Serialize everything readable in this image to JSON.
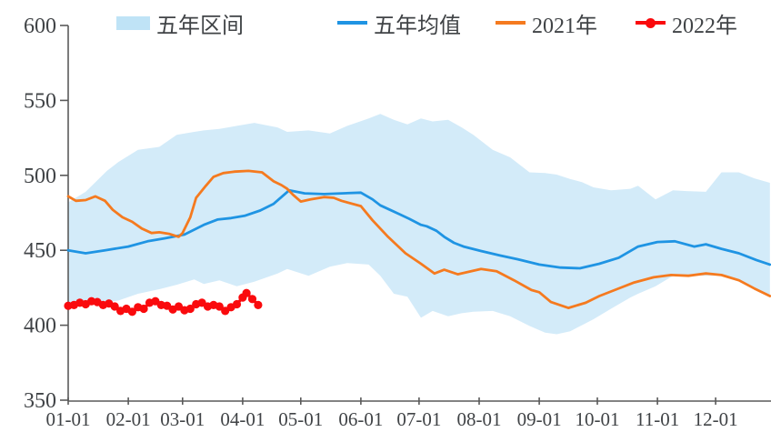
{
  "chart_data": {
    "type": "line",
    "title": "",
    "legend_position": "top",
    "grid": false,
    "axis_color": "#5A5A5A",
    "text_color": "#404346",
    "legend": [
      {
        "label": "五年区间",
        "type": "band",
        "color": "#BFE3F6"
      },
      {
        "label": "五年均值",
        "type": "line",
        "color": "#1F94E3"
      },
      {
        "label": "2021年",
        "type": "line",
        "color": "#F57A1F"
      },
      {
        "label": "2022年",
        "type": "line-marker",
        "color": "#FA0A0D"
      }
    ],
    "y_axis": {
      "min": 350,
      "max": 600,
      "tick_values": [
        350,
        400,
        450,
        500,
        550,
        600
      ]
    },
    "x_axis": {
      "tick_labels": [
        "01-01",
        "02-01",
        "03-01",
        "04-01",
        "05-01",
        "06-01",
        "07-01",
        "08-01",
        "09-01",
        "10-01",
        "11-01",
        "12-01"
      ]
    },
    "band": {
      "name": "五年区间",
      "color": "#D3EBF9",
      "comment": "points are [date, low, high]",
      "points": [
        [
          "01-01",
          413,
          482
        ],
        [
          "01-10",
          413.5,
          489
        ],
        [
          "01-21",
          415.5,
          503
        ],
        [
          "01-27",
          416.5,
          509
        ],
        [
          "02-06",
          421,
          517
        ],
        [
          "02-17",
          424,
          519
        ],
        [
          "02-26",
          427,
          527
        ],
        [
          "03-07",
          430.5,
          529
        ],
        [
          "03-12",
          427.5,
          530
        ],
        [
          "03-20",
          430,
          531
        ],
        [
          "03-29",
          426,
          533
        ],
        [
          "04-07",
          429,
          535
        ],
        [
          "04-19",
          434.5,
          532
        ],
        [
          "04-24",
          437.5,
          529
        ],
        [
          "05-05",
          433,
          530
        ],
        [
          "05-16",
          439,
          528
        ],
        [
          "05-25",
          441.5,
          533
        ],
        [
          "06-05",
          440.5,
          538
        ],
        [
          "06-11",
          433,
          541
        ],
        [
          "06-18",
          421,
          537
        ],
        [
          "06-25",
          419,
          534
        ],
        [
          "07-02",
          405,
          538
        ],
        [
          "07-08",
          409.5,
          536
        ],
        [
          "07-16",
          406,
          537
        ],
        [
          "07-23",
          408,
          532
        ],
        [
          "07-29",
          409,
          527
        ],
        [
          "08-08",
          409.5,
          517
        ],
        [
          "08-17",
          406,
          512
        ],
        [
          "08-27",
          399.5,
          502
        ],
        [
          "09-04",
          395,
          501.5
        ],
        [
          "09-10",
          394,
          500.5
        ],
        [
          "09-17",
          396,
          497.5
        ],
        [
          "09-23",
          400,
          495.5
        ],
        [
          "09-29",
          404,
          492
        ],
        [
          "10-08",
          411,
          490
        ],
        [
          "10-18",
          418.5,
          491
        ],
        [
          "10-22",
          421,
          493
        ],
        [
          "10-31",
          426,
          484
        ],
        [
          "11-09",
          433,
          490
        ],
        [
          "11-16",
          433.5,
          489.5
        ],
        [
          "11-26",
          433,
          489
        ],
        [
          "12-04",
          433.5,
          502
        ],
        [
          "12-13",
          430.5,
          502
        ],
        [
          "12-21",
          424,
          498
        ],
        [
          "12-29",
          420,
          495
        ]
      ]
    },
    "series": [
      {
        "id": "mean",
        "name": "五年均值",
        "color": "#1F94E3",
        "width": 2.8,
        "marker": false,
        "points": [
          [
            "01-01",
            450
          ],
          [
            "01-10",
            448
          ],
          [
            "01-20",
            450
          ],
          [
            "02-01",
            452.5
          ],
          [
            "02-11",
            456
          ],
          [
            "02-20",
            458
          ],
          [
            "03-02",
            460.5
          ],
          [
            "03-12",
            467
          ],
          [
            "03-19",
            470.5
          ],
          [
            "03-26",
            471.5
          ],
          [
            "04-02",
            473
          ],
          [
            "04-10",
            476.5
          ],
          [
            "04-17",
            481
          ],
          [
            "04-25",
            490
          ],
          [
            "05-03",
            488
          ],
          [
            "05-13",
            487.5
          ],
          [
            "05-22",
            488
          ],
          [
            "06-01",
            488.5
          ],
          [
            "06-07",
            484
          ],
          [
            "06-11",
            480
          ],
          [
            "06-16",
            477
          ],
          [
            "06-21",
            474
          ],
          [
            "06-26",
            471
          ],
          [
            "07-02",
            467
          ],
          [
            "07-05",
            466
          ],
          [
            "07-10",
            463
          ],
          [
            "07-14",
            459
          ],
          [
            "07-19",
            455
          ],
          [
            "07-24",
            452.5
          ],
          [
            "08-02",
            449.5
          ],
          [
            "08-12",
            446.5
          ],
          [
            "08-21",
            444
          ],
          [
            "09-01",
            440.5
          ],
          [
            "09-12",
            438.5
          ],
          [
            "09-22",
            438
          ],
          [
            "10-02",
            441
          ],
          [
            "10-12",
            445
          ],
          [
            "10-22",
            452.5
          ],
          [
            "11-01",
            455.5
          ],
          [
            "11-10",
            456
          ],
          [
            "11-20",
            452.5
          ],
          [
            "11-26",
            454
          ],
          [
            "12-04",
            451
          ],
          [
            "12-13",
            448
          ],
          [
            "12-22",
            443.5
          ],
          [
            "12-29",
            440.5
          ]
        ]
      },
      {
        "id": "y2021",
        "name": "2021年",
        "color": "#F57A1F",
        "width": 2.8,
        "marker": false,
        "points": [
          [
            "01-01",
            486
          ],
          [
            "01-05",
            483
          ],
          [
            "01-10",
            483.5
          ],
          [
            "01-15",
            486
          ],
          [
            "01-20",
            483
          ],
          [
            "01-24",
            477
          ],
          [
            "01-29",
            472
          ],
          [
            "02-03",
            469
          ],
          [
            "02-08",
            464.5
          ],
          [
            "02-13",
            461.5
          ],
          [
            "02-17",
            462
          ],
          [
            "02-22",
            461
          ],
          [
            "02-27",
            459
          ],
          [
            "03-01",
            461.5
          ],
          [
            "03-05",
            472
          ],
          [
            "03-08",
            485
          ],
          [
            "03-13",
            493
          ],
          [
            "03-17",
            499
          ],
          [
            "03-22",
            501.5
          ],
          [
            "03-28",
            502.5
          ],
          [
            "04-04",
            503
          ],
          [
            "04-11",
            502
          ],
          [
            "04-17",
            496
          ],
          [
            "04-21",
            493.5
          ],
          [
            "04-24",
            491
          ],
          [
            "04-27",
            487
          ],
          [
            "05-01",
            482.5
          ],
          [
            "05-06",
            484
          ],
          [
            "05-13",
            485.5
          ],
          [
            "05-18",
            485
          ],
          [
            "05-22",
            483
          ],
          [
            "06-01",
            479.5
          ],
          [
            "06-07",
            470
          ],
          [
            "06-15",
            459
          ],
          [
            "06-24",
            448
          ],
          [
            "07-02",
            441
          ],
          [
            "07-09",
            434.5
          ],
          [
            "07-14",
            437
          ],
          [
            "07-21",
            434
          ],
          [
            "08-02",
            437.5
          ],
          [
            "08-10",
            436
          ],
          [
            "08-19",
            430
          ],
          [
            "08-28",
            423.5
          ],
          [
            "09-01",
            422
          ],
          [
            "09-07",
            415.5
          ],
          [
            "09-16",
            411.5
          ],
          [
            "09-25",
            415
          ],
          [
            "10-02",
            419.5
          ],
          [
            "10-11",
            424
          ],
          [
            "10-20",
            428.5
          ],
          [
            "10-30",
            432
          ],
          [
            "11-08",
            433.5
          ],
          [
            "11-17",
            433
          ],
          [
            "11-26",
            434.5
          ],
          [
            "12-04",
            433.5
          ],
          [
            "12-13",
            430
          ],
          [
            "12-21",
            424.5
          ],
          [
            "12-29",
            419.5
          ]
        ]
      },
      {
        "id": "y2022",
        "name": "2022年",
        "color": "#FA0A0D",
        "width": 3.2,
        "marker": true,
        "points": [
          [
            "01-01",
            413
          ],
          [
            "01-04",
            413.5
          ],
          [
            "01-07",
            415
          ],
          [
            "01-10",
            414
          ],
          [
            "01-13",
            416
          ],
          [
            "01-16",
            415.5
          ],
          [
            "01-19",
            413.5
          ],
          [
            "01-22",
            414.5
          ],
          [
            "01-25",
            412.5
          ],
          [
            "01-28",
            409.5
          ],
          [
            "01-31",
            411
          ],
          [
            "02-03",
            409
          ],
          [
            "02-06",
            412
          ],
          [
            "02-09",
            411
          ],
          [
            "02-12",
            415
          ],
          [
            "02-15",
            416
          ],
          [
            "02-18",
            413.5
          ],
          [
            "02-21",
            413
          ],
          [
            "02-24",
            410.5
          ],
          [
            "02-27",
            412.5
          ],
          [
            "03-02",
            410
          ],
          [
            "03-05",
            411
          ],
          [
            "03-08",
            414
          ],
          [
            "03-11",
            415
          ],
          [
            "03-14",
            412.5
          ],
          [
            "03-17",
            413.5
          ],
          [
            "03-20",
            412.5
          ],
          [
            "03-23",
            409.5
          ],
          [
            "03-26",
            412
          ],
          [
            "03-29",
            414
          ],
          [
            "04-01",
            418.5
          ],
          [
            "04-03",
            421.5
          ],
          [
            "04-06",
            417.5
          ],
          [
            "04-09",
            413.5
          ]
        ]
      }
    ]
  }
}
